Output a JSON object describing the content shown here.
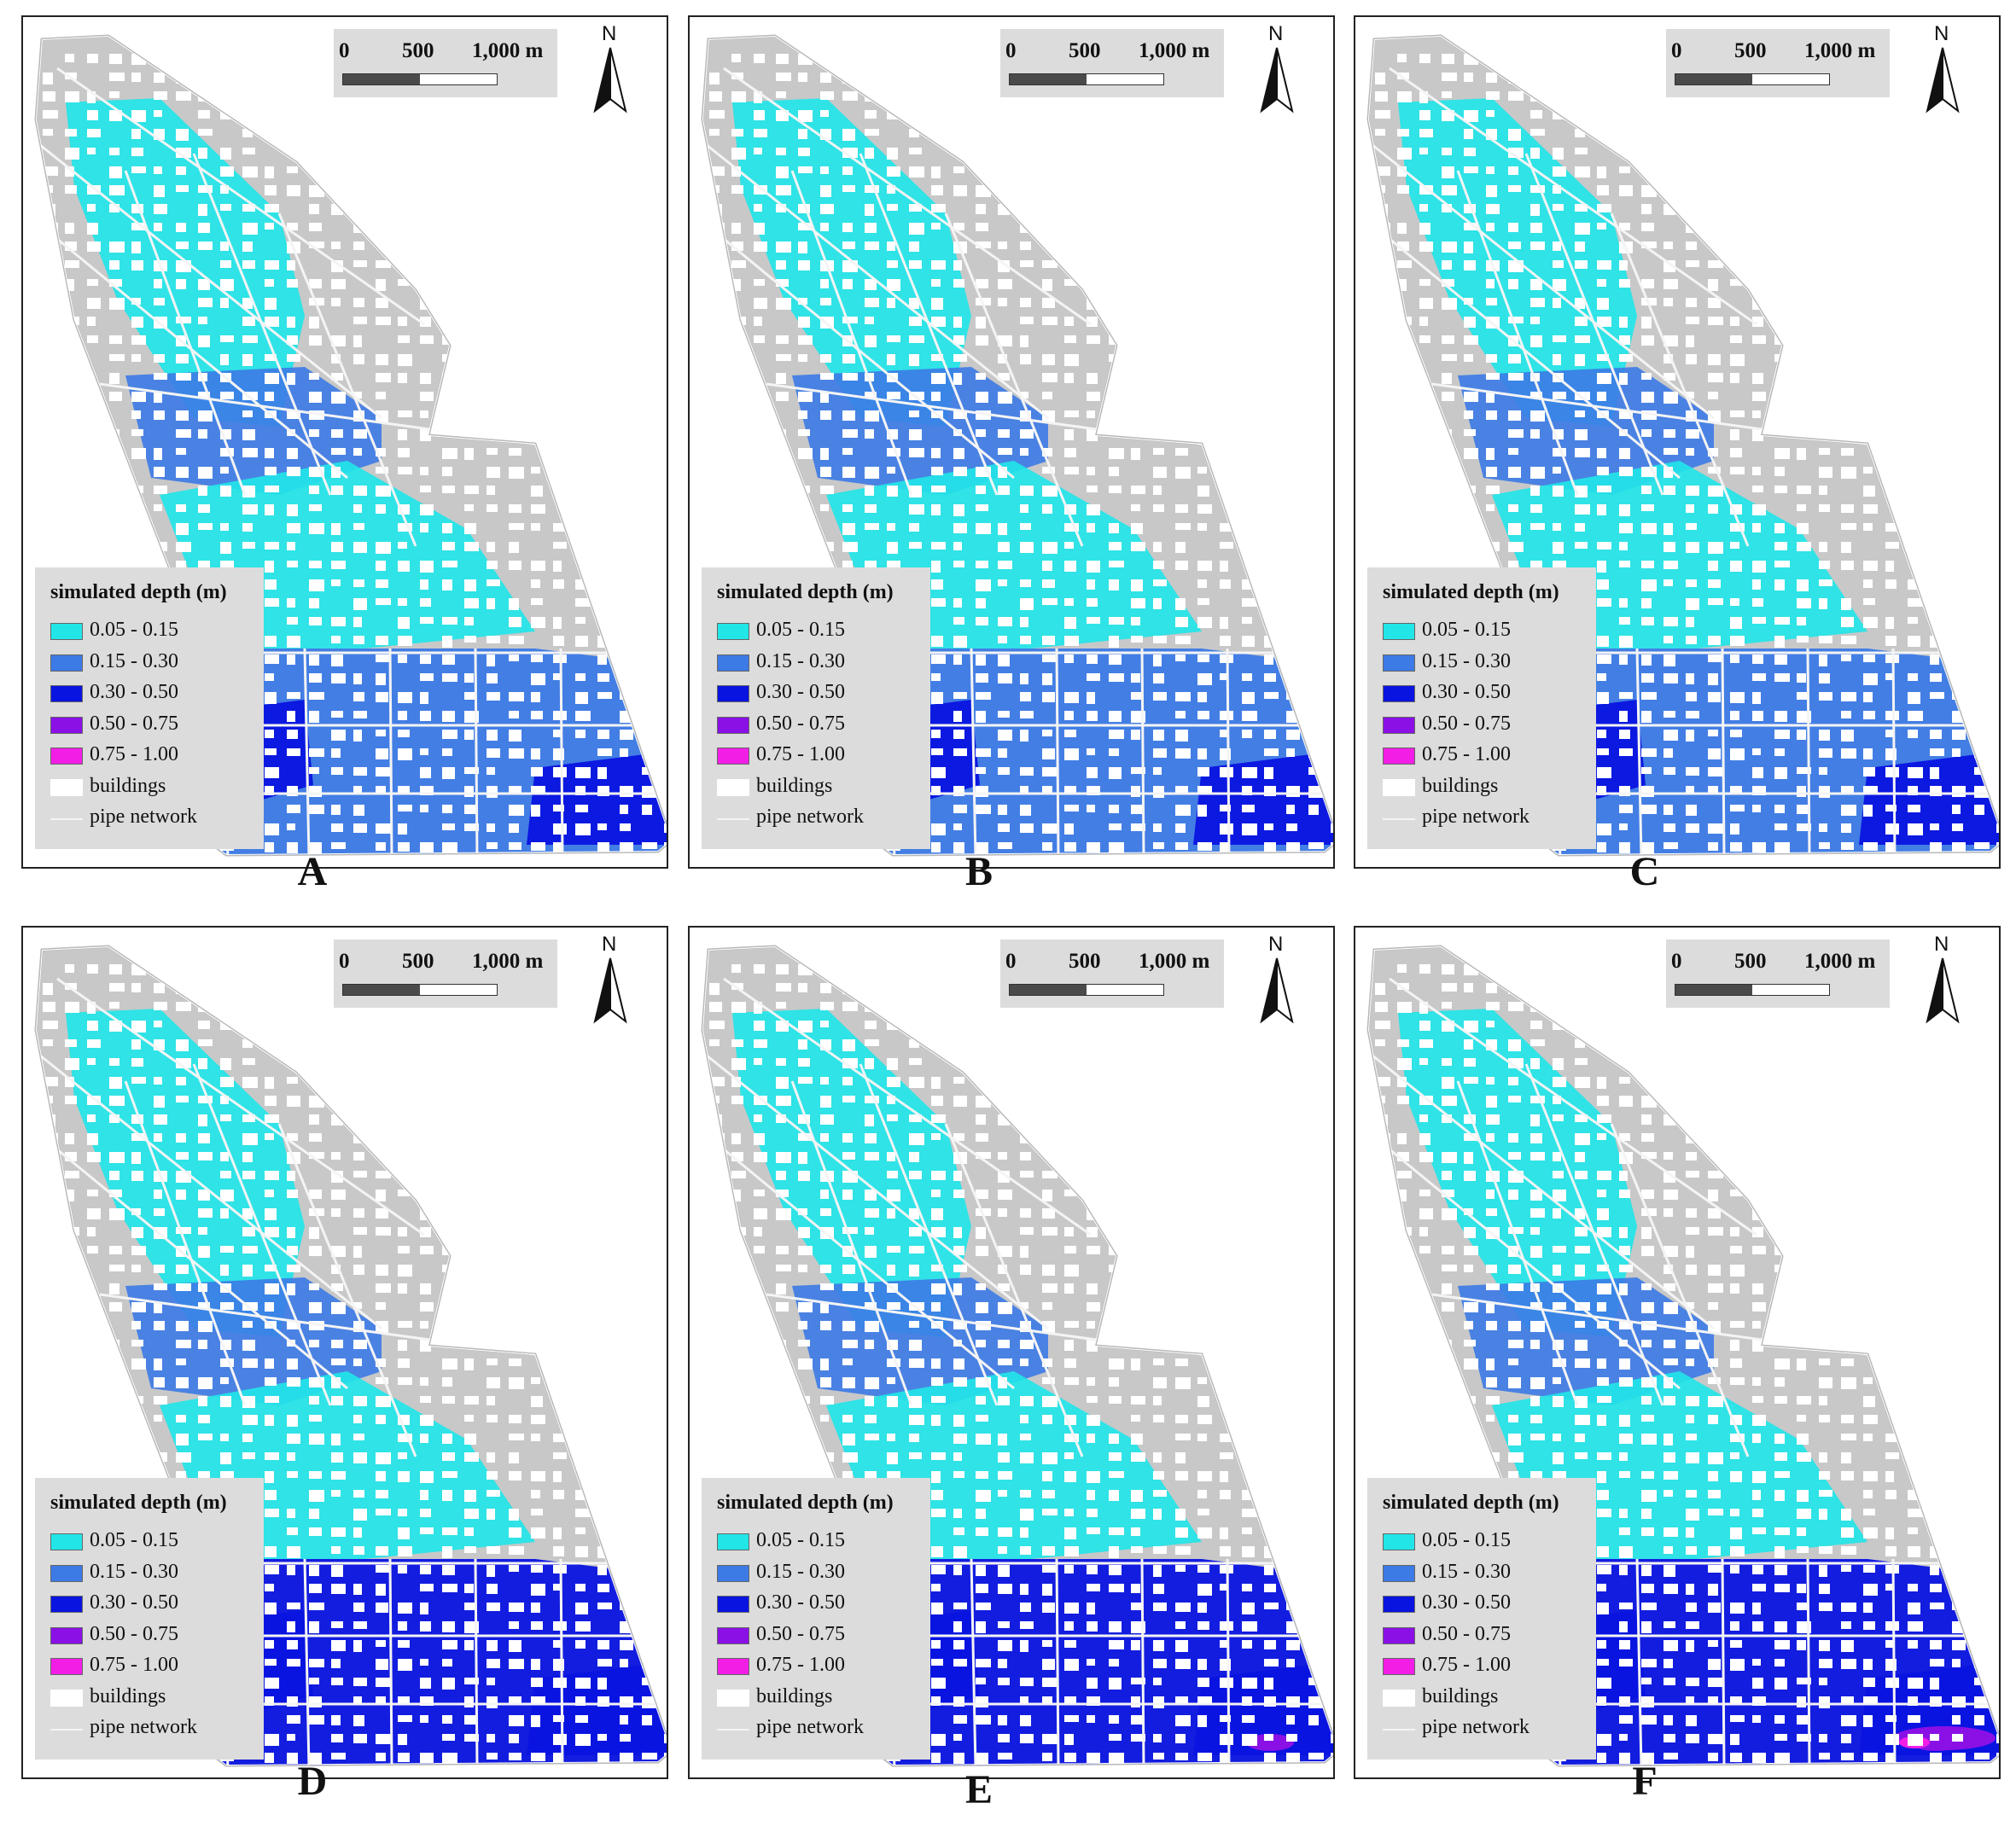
{
  "scale": {
    "zero": "0",
    "mid": "500",
    "max": "1,000 m"
  },
  "north": "N",
  "legend": {
    "title": "simulated depth (m)",
    "items": [
      {
        "label": "0.05 - 0.15",
        "color": "#22e5e8",
        "kind": "box"
      },
      {
        "label": "0.15 - 0.30",
        "color": "#3c7ae6",
        "kind": "box"
      },
      {
        "label": "0.30 - 0.50",
        "color": "#0a14e0",
        "kind": "box"
      },
      {
        "label": "0.50 - 0.75",
        "color": "#8b10e6",
        "kind": "box"
      },
      {
        "label": "0.75 - 1.00",
        "color": "#f21ee6",
        "kind": "box"
      },
      {
        "label": "buildings",
        "color": "#ffffff",
        "kind": "box"
      },
      {
        "label": "pipe network",
        "color": "#f2f2f2",
        "kind": "line"
      }
    ]
  },
  "colors": {
    "base": "#c8c8c8",
    "cyan": "#22e5e8",
    "mid": "#3c7ae6",
    "deep": "#0a14e0",
    "purple": "#8b10e6",
    "magenta": "#f21ee6"
  },
  "panels": [
    {
      "label": "A",
      "south": "mid",
      "extreme": 0
    },
    {
      "label": "B",
      "south": "mid",
      "extreme": 0
    },
    {
      "label": "C",
      "south": "mid",
      "extreme": 0
    },
    {
      "label": "D",
      "south": "deep",
      "extreme": 0
    },
    {
      "label": "E",
      "south": "deep",
      "extreme": 1
    },
    {
      "label": "F",
      "south": "deep",
      "extreme": 2
    }
  ]
}
